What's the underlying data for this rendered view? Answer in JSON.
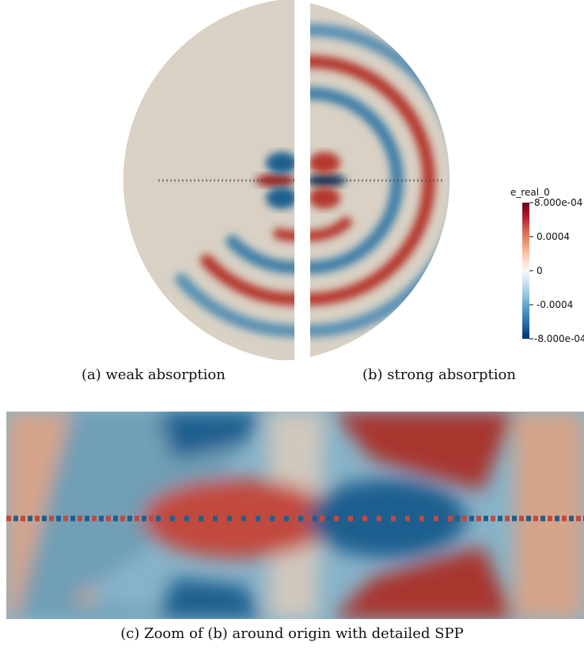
{
  "figure": {
    "colorbar": {
      "title": "e_real_0",
      "ticks": [
        "8.000e-04",
        "0.0004",
        "0",
        "-0.0004",
        "-8.000e-04"
      ],
      "colormap": [
        "#67001f",
        "#b2182b",
        "#d6604d",
        "#f4a582",
        "#fddbc7",
        "#f7f7f7",
        "#d1e5f0",
        "#92c5de",
        "#4393c3",
        "#2166ac",
        "#053061"
      ]
    },
    "captions": {
      "a": "(a) weak absorption",
      "b": "(b) strong absorption",
      "c": "(c) Zoom of (b) around origin with detailed SPP"
    },
    "colors": {
      "background": "#d8d1c4",
      "red": "#b5392f",
      "blue": "#1f5f8f",
      "dark_red": "#8b1a1a",
      "dark_blue": "#0d2f55"
    }
  }
}
